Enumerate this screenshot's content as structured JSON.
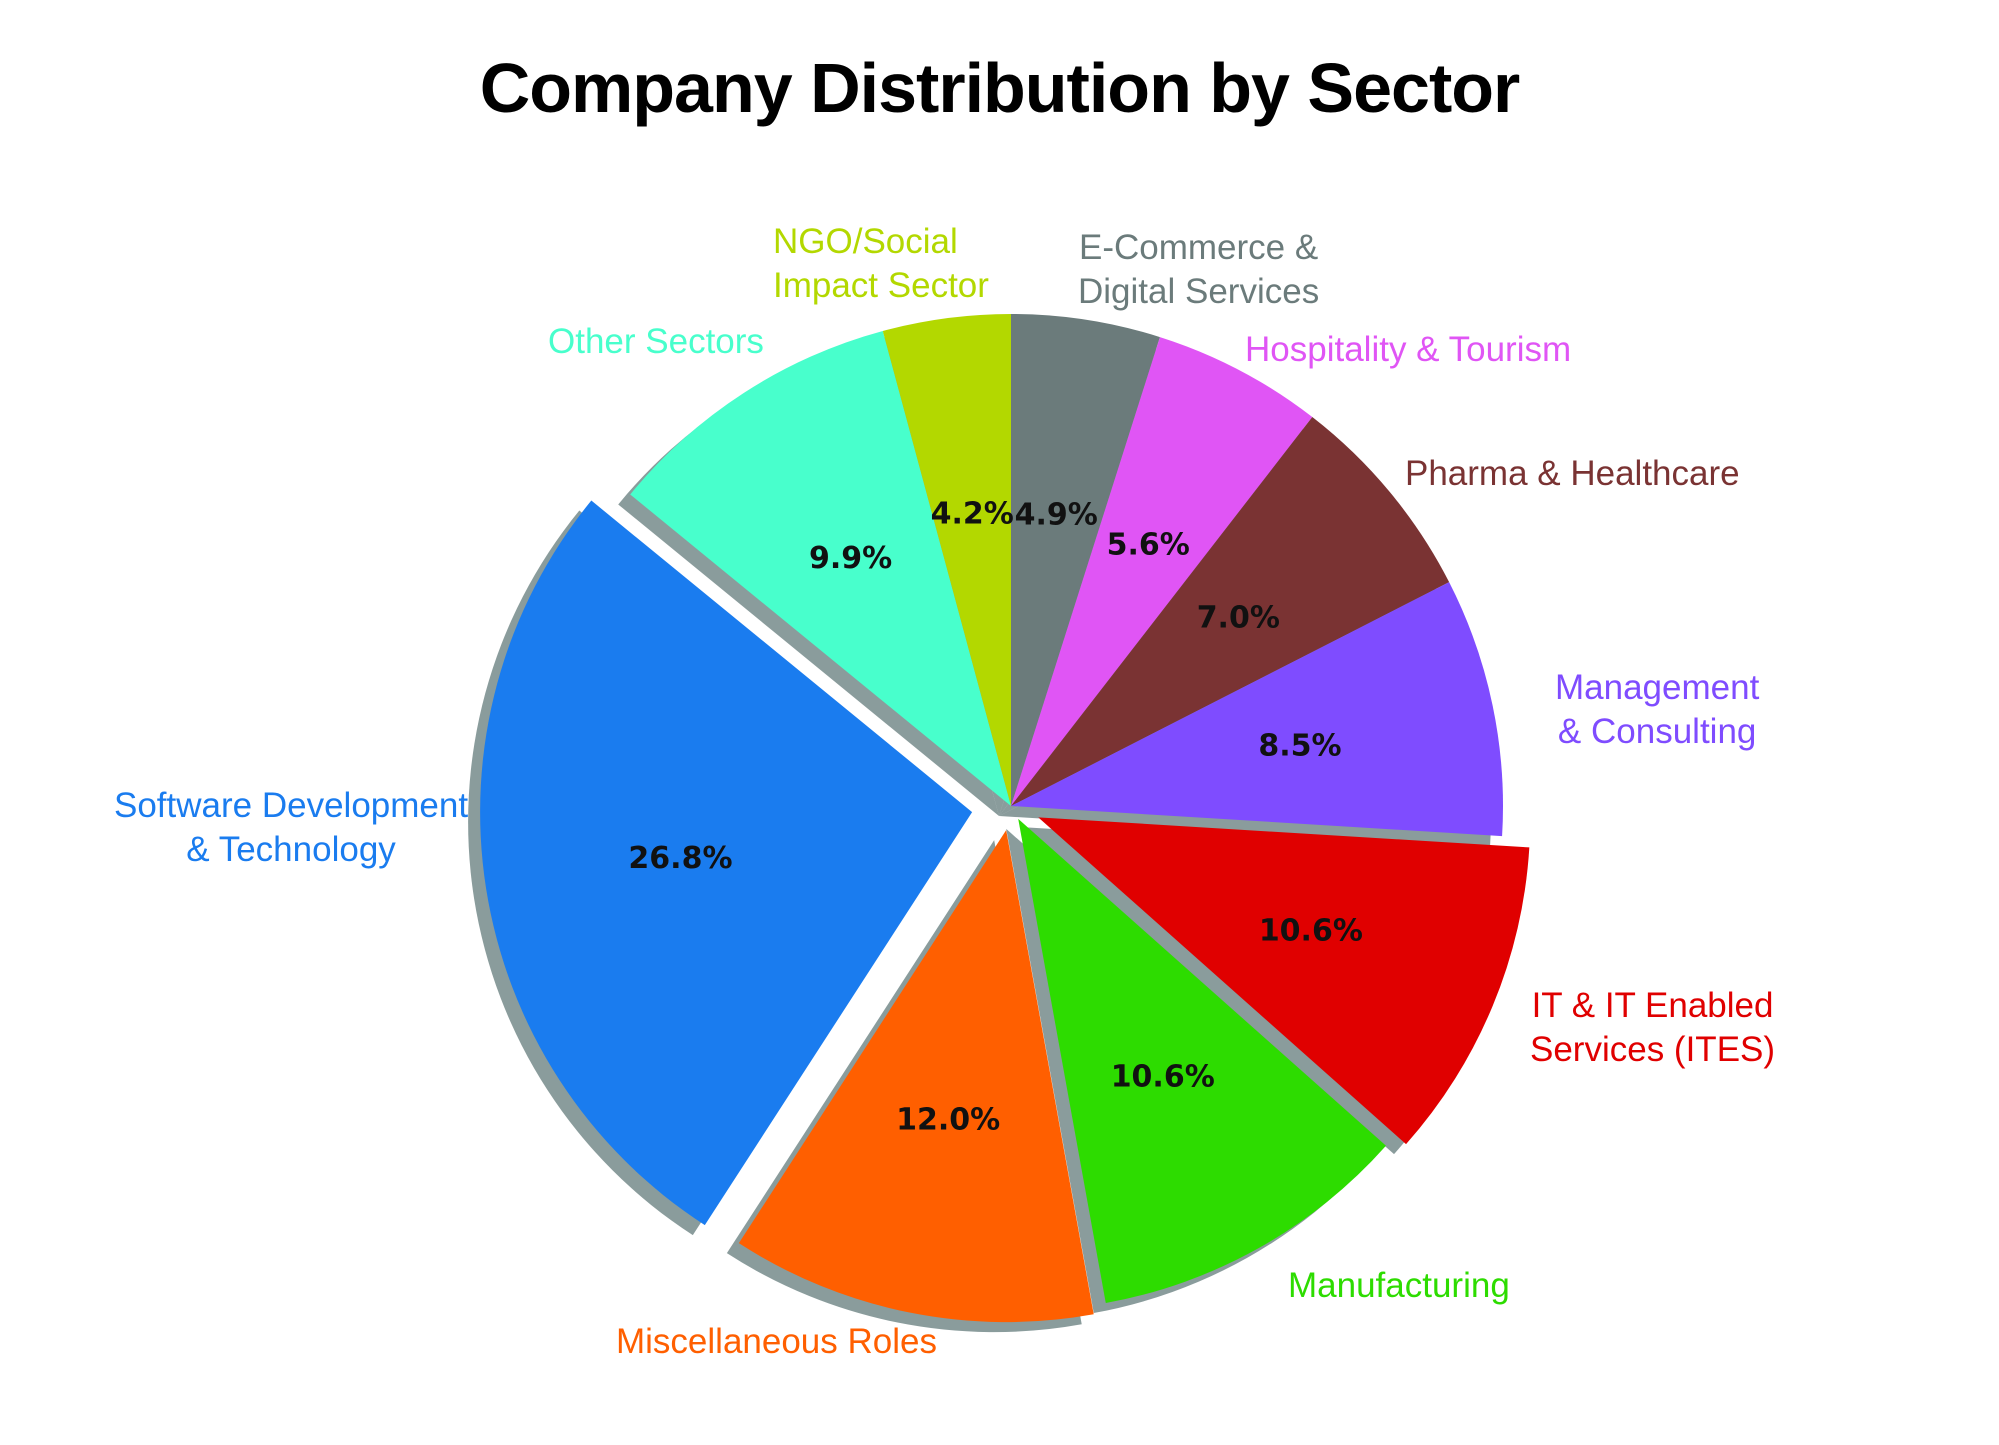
{
  "chart_data": {
    "type": "pie",
    "title": "Company Distribution by Sector",
    "start_angle_deg": 90,
    "direction": "clockwise",
    "shadow": true,
    "categories": [
      "E-Commerce & Digital Services",
      "Hospitality & Tourism",
      "Pharma & Healthcare",
      "Management & Consulting",
      "IT & IT Enabled Services (ITES)",
      "Manufacturing",
      "Miscellaneous Roles",
      "Software Development & Technology",
      "Other Sectors",
      "NGO/Social Impact Sector"
    ],
    "values": [
      4.9,
      5.6,
      7.0,
      8.5,
      10.6,
      10.6,
      12.0,
      26.8,
      9.9,
      4.2
    ],
    "value_labels": [
      "4.9%",
      "5.6%",
      "7.0%",
      "8.5%",
      "10.6%",
      "10.6%",
      "12.0%",
      "26.8%",
      "9.9%",
      "4.2%"
    ],
    "colors": [
      "#6b7b7b",
      "#e055f5",
      "#7a3333",
      "#7f4cff",
      "#e00000",
      "#2ddc00",
      "#ff5f00",
      "#1a7cef",
      "#48ffcc",
      "#b3d800"
    ],
    "explode": [
      0,
      0,
      0,
      0,
      0.06,
      0.03,
      0.05,
      0.08,
      0,
      0
    ]
  },
  "title": "Company Distribution by Sector",
  "labels": [
    {
      "line1": "E-Commerce &",
      "line2": "Digital Services",
      "color": "#6b7b7b"
    },
    {
      "line1": "Hospitality & Tourism",
      "line2": "",
      "color": "#e055f5"
    },
    {
      "line1": "Pharma & Healthcare",
      "line2": "",
      "color": "#7a3333"
    },
    {
      "line1": "Management",
      "line2": "& Consulting",
      "color": "#7f4cff"
    },
    {
      "line1": "IT & IT Enabled",
      "line2": "Services (ITES)",
      "color": "#e00000"
    },
    {
      "line1": "Manufacturing",
      "line2": "",
      "color": "#2ddc00"
    },
    {
      "line1": "Miscellaneous Roles",
      "line2": "",
      "color": "#ff5f00"
    },
    {
      "line1": "Software Development",
      "line2": "& Technology",
      "color": "#1a7cef"
    },
    {
      "line1": "Other Sectors",
      "line2": "",
      "color": "#48ffcc"
    },
    {
      "line1": "NGO/Social",
      "line2": "Impact Sector",
      "color": "#b3d800"
    }
  ]
}
